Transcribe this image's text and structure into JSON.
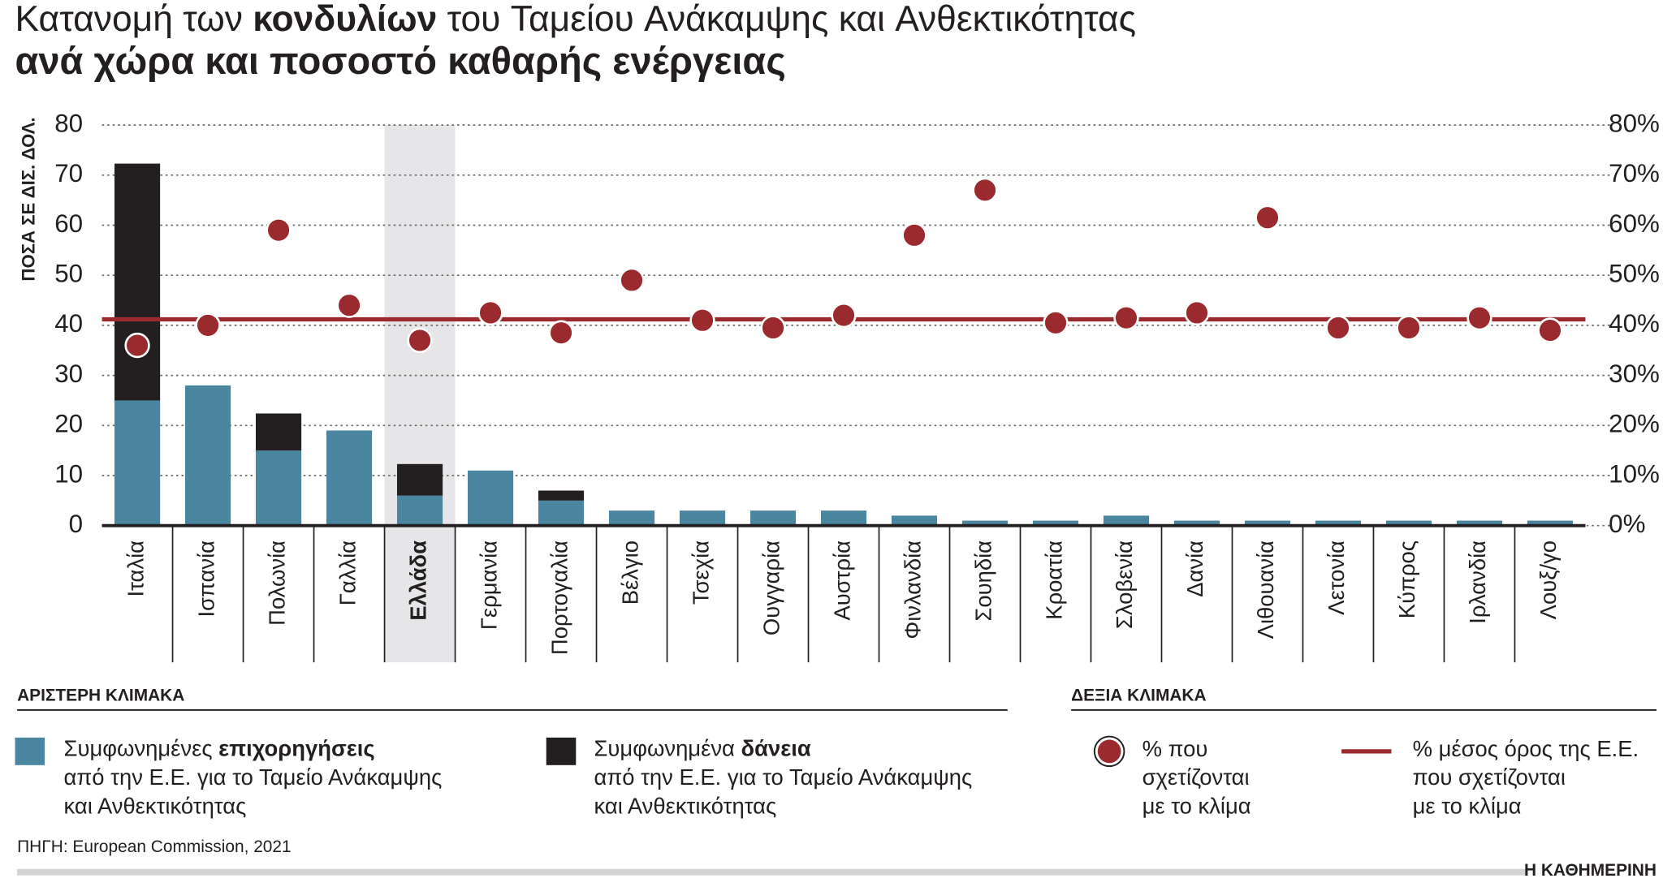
{
  "chart_data": {
    "type": "bar",
    "stacked": true,
    "title": "Κατανομή των κονδυλίων του Ταμείου Ανάκαμψης και Ανθεκτικότητας",
    "title_bold_word": 2,
    "subtitle": "ανά χώρα και ποσοστό καθαρής ενέργειας",
    "ylabel": "ΠΟΣΑ ΣΕ ΔΙΣ. ΔΟΛ.",
    "categories": [
      "Ιταλία",
      "Ισπανία",
      "Πολωνία",
      "Γαλλία",
      "Ελλάδα",
      "Γερμανία",
      "Πορτογαλία",
      "Βέλγιο",
      "Τσεχία",
      "Ουγγαρία",
      "Αυστρία",
      "Φινλανδία",
      "Σουηδία",
      "Κροατία",
      "Σλοβενία",
      "Δανία",
      "Λιθουανία",
      "Λετονία",
      "Κύπρος",
      "Ιρλανδία",
      "Λουξ/γο"
    ],
    "highlight_index": 4,
    "series": [
      {
        "name": [
          "Συμφωνημένες επιχορηγήσεις",
          "από την Ε.Ε. για το Ταμείο Ανάκαμψης",
          "και Ανθεκτικότητας"
        ],
        "bold_word": 1,
        "color": "#4a86a0",
        "values": [
          25,
          28,
          15,
          19,
          6,
          11,
          5,
          3,
          3,
          3,
          3,
          2,
          1,
          1,
          2,
          1,
          1,
          1,
          1,
          1,
          1
        ]
      },
      {
        "name": [
          "Συμφωνημένα δάνεια",
          "από την Ε.Ε. για το Ταμείο Ανάκαμψης",
          "και Ανθεκτικότητας"
        ],
        "bold_word": 1,
        "color": "#231f20",
        "values": [
          47.3,
          0,
          7.4,
          0,
          6.3,
          0,
          2,
          0,
          0,
          0,
          0,
          0,
          0,
          0,
          0,
          0,
          0,
          0,
          0,
          0,
          0
        ]
      },
      {
        "name": [
          "% που",
          "σχετίζονται",
          "με το κλίμα"
        ],
        "type": "scatter",
        "axis": "y2",
        "color": "#9b2a2e",
        "values": [
          36,
          40,
          59,
          44,
          37,
          42.5,
          38.5,
          49,
          41,
          39.5,
          42,
          58,
          67,
          40.5,
          41.5,
          42.5,
          61.5,
          39.5,
          39.5,
          41.5,
          39
        ]
      }
    ],
    "reference_line": {
      "name": [
        "% μέσος όρος της Ε.Ε.",
        "που σχετίζονται",
        "με το κλίμα"
      ],
      "value": 41.2,
      "axis": "y2",
      "color": "#9b2a2e"
    },
    "ylim": [
      0,
      80
    ],
    "yticks": [
      0,
      10,
      20,
      30,
      40,
      50,
      60,
      70,
      80
    ],
    "y2lim": [
      0,
      80
    ],
    "y2ticks": [
      {
        "value": 0,
        "label": "0%"
      },
      {
        "value": 10,
        "label": "10%"
      },
      {
        "value": 20,
        "label": "20%"
      },
      {
        "value": 30,
        "label": "30%"
      },
      {
        "value": 40,
        "label": "40%"
      },
      {
        "value": 50,
        "label": "50%"
      },
      {
        "value": 60,
        "label": "60%"
      },
      {
        "value": 70,
        "label": "70%"
      },
      {
        "value": 80,
        "label": "80%"
      }
    ],
    "grid": true,
    "left_scale_label": "ΑΡΙΣΤΕΡΗ ΚΛΙΜΑΚΑ",
    "right_scale_label": "ΔΕΞΙΑ ΚΛΙΜΑΚΑ",
    "source": "ΠΗΓΗ: European Commission, 2021",
    "publisher": "Η ΚΑΘΗΜΕΡΙΝΗ"
  }
}
